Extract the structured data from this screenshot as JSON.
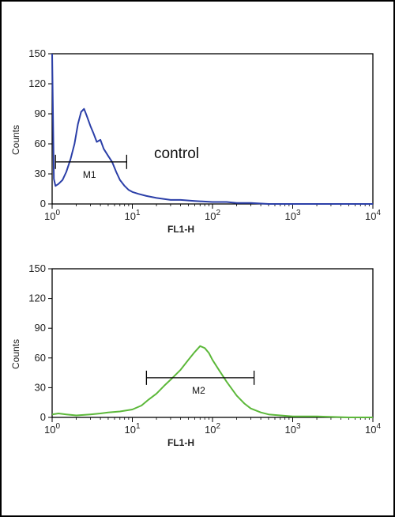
{
  "chart_data": [
    {
      "type": "area",
      "title": "",
      "xlabel": "FL1-H",
      "ylabel": "Counts",
      "x_scale": "log",
      "xlim": [
        1,
        10000
      ],
      "ylim": [
        0,
        150
      ],
      "x_ticks": [
        "10",
        "10",
        "10",
        "10",
        "10"
      ],
      "x_tick_exponents": [
        "0",
        "1",
        "2",
        "3",
        "4"
      ],
      "y_ticks": [
        "0",
        "30",
        "60",
        "90",
        "120",
        "150"
      ],
      "annotation": "control",
      "color": "#2b3fa8",
      "marker": {
        "label": "M1",
        "x_start": 1.1,
        "x_end": 8.5,
        "y": 42
      },
      "series": [
        {
          "x": [
            1.0,
            1.05,
            1.1,
            1.2,
            1.35,
            1.5,
            1.7,
            1.9,
            2.1,
            2.3,
            2.5,
            2.7,
            3.0,
            3.3,
            3.6,
            4.0,
            4.4,
            5.0,
            5.6,
            6.3,
            7.0,
            8.0,
            9.0,
            10,
            12,
            15,
            20,
            25,
            30,
            40,
            60,
            100,
            150,
            200,
            300,
            500,
            1000,
            10000
          ],
          "y": [
            150,
            25,
            18,
            20,
            24,
            32,
            45,
            60,
            80,
            92,
            95,
            88,
            78,
            70,
            62,
            64,
            55,
            48,
            42,
            32,
            24,
            18,
            14,
            12,
            10,
            8,
            6,
            5,
            4,
            4,
            3,
            2,
            2,
            1,
            1,
            0,
            0,
            0
          ]
        }
      ]
    },
    {
      "type": "area",
      "title": "",
      "xlabel": "FL1-H",
      "ylabel": "Counts",
      "x_scale": "log",
      "xlim": [
        1,
        10000
      ],
      "ylim": [
        0,
        150
      ],
      "x_ticks": [
        "10",
        "10",
        "10",
        "10",
        "10"
      ],
      "x_tick_exponents": [
        "0",
        "1",
        "2",
        "3",
        "4"
      ],
      "y_ticks": [
        "0",
        "30",
        "60",
        "90",
        "120",
        "150"
      ],
      "color": "#5cb83a",
      "marker": {
        "label": "M2",
        "x_start": 15,
        "x_end": 330,
        "y": 40
      },
      "series": [
        {
          "x": [
            1.0,
            1.2,
            1.5,
            2,
            3,
            4,
            5,
            7,
            10,
            13,
            16,
            20,
            25,
            30,
            40,
            50,
            60,
            70,
            80,
            90,
            100,
            120,
            150,
            200,
            250,
            300,
            400,
            500,
            700,
            1000,
            2000,
            5000,
            10000
          ],
          "y": [
            3,
            4,
            3,
            2,
            3,
            4,
            5,
            6,
            8,
            12,
            18,
            24,
            32,
            38,
            48,
            58,
            66,
            72,
            70,
            65,
            58,
            48,
            36,
            22,
            14,
            9,
            5,
            3,
            2,
            1,
            1,
            0,
            0
          ]
        }
      ]
    }
  ]
}
